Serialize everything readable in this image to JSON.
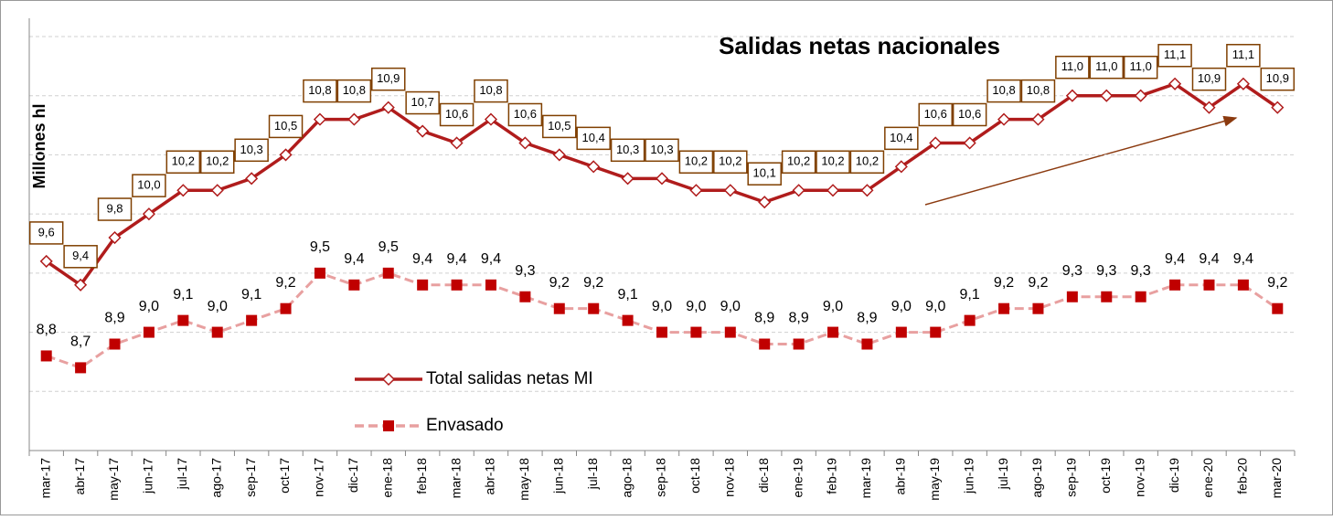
{
  "chart_data": {
    "type": "line",
    "title": "Salidas netas nacionales",
    "y_label": "Millones hl",
    "categories": [
      "mar-17",
      "abr-17",
      "may-17",
      "jun-17",
      "jul-17",
      "ago-17",
      "sep-17",
      "oct-17",
      "nov-17",
      "dic-17",
      "ene-18",
      "feb-18",
      "mar-18",
      "abr-18",
      "may-18",
      "jun-18",
      "jul-18",
      "ago-18",
      "sep-18",
      "oct-18",
      "nov-18",
      "dic-18",
      "ene-19",
      "feb-19",
      "mar-19",
      "abr-19",
      "may-19",
      "jun-19",
      "jul-19",
      "ago-19",
      "sep-19",
      "oct-19",
      "nov-19",
      "dic-19",
      "ene-20",
      "feb-20",
      "mar-20"
    ],
    "series": [
      {
        "name": "Total salidas netas MI",
        "color": "#b01c1c",
        "values": [
          9.6,
          9.4,
          9.8,
          10.0,
          10.2,
          10.2,
          10.3,
          10.5,
          10.8,
          10.8,
          10.9,
          10.7,
          10.6,
          10.8,
          10.6,
          10.5,
          10.4,
          10.3,
          10.3,
          10.2,
          10.2,
          10.1,
          10.2,
          10.2,
          10.2,
          10.4,
          10.6,
          10.6,
          10.8,
          10.8,
          11.0,
          11.0,
          11.0,
          11.1,
          10.9,
          11.1,
          10.9
        ],
        "value_labels": [
          "9,6",
          "9,4",
          "9,8",
          "10,0",
          "10,2",
          "10,2",
          "10,3",
          "10,5",
          "10,8",
          "10,8",
          "10,9",
          "10,7",
          "10,6",
          "10,8",
          "10,6",
          "10,5",
          "10,4",
          "10,3",
          "10,3",
          "10,2",
          "10,2",
          "10,1",
          "10,2",
          "10,2",
          "10,2",
          "10,4",
          "10,6",
          "10,6",
          "10,8",
          "10,8",
          "11,0",
          "11,0",
          "11,0",
          "11,1",
          "10,9",
          "11,1",
          "10,9"
        ]
      },
      {
        "name": "Envasado",
        "color": "#e8a0a0",
        "values": [
          8.8,
          8.7,
          8.9,
          9.0,
          9.1,
          9.0,
          9.1,
          9.2,
          9.5,
          9.4,
          9.5,
          9.4,
          9.4,
          9.4,
          9.3,
          9.2,
          9.2,
          9.1,
          9.0,
          9.0,
          9.0,
          8.9,
          8.9,
          9.0,
          8.9,
          9.0,
          9.0,
          9.1,
          9.2,
          9.2,
          9.3,
          9.3,
          9.3,
          9.4,
          9.4,
          9.4,
          9.2
        ],
        "value_labels": [
          "8,8",
          "8,7",
          "8,9",
          "9,0",
          "9,1",
          "9,0",
          "9,1",
          "9,2",
          "9,5",
          "9,4",
          "9,5",
          "9,4",
          "9,4",
          "9,4",
          "9,3",
          "9,2",
          "9,2",
          "9,1",
          "9,0",
          "9,0",
          "9,0",
          "8,9",
          "8,9",
          "9,0",
          "8,9",
          "9,0",
          "9,0",
          "9,1",
          "9,2",
          "9,2",
          "9,3",
          "9,3",
          "9,3",
          "9,4",
          "9,4",
          "9,4",
          "9,2"
        ]
      }
    ],
    "ylim": [
      8,
      11.5
    ],
    "yticks": [
      8,
      8.5,
      9,
      9.5,
      10,
      10.5,
      11,
      11.5
    ],
    "grid": true
  }
}
